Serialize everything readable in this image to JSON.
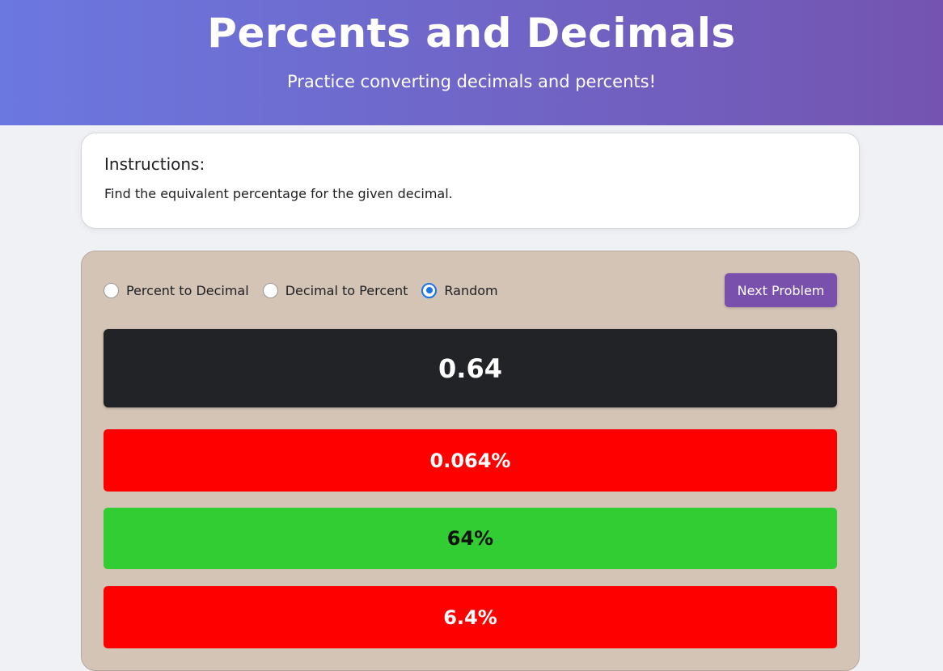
{
  "header": {
    "title": "Percents and Decimals",
    "subtitle": "Practice converting decimals and percents!"
  },
  "instructions": {
    "heading": "Instructions:",
    "text": "Find the equivalent percentage for the given decimal."
  },
  "controls": {
    "modes": [
      {
        "label": "Percent to Decimal",
        "selected": false
      },
      {
        "label": "Decimal to Percent",
        "selected": false
      },
      {
        "label": "Random",
        "selected": true
      }
    ],
    "next_label": "Next Problem"
  },
  "problem": {
    "value": "0.64"
  },
  "answers": [
    {
      "label": "0.064%",
      "state": "wrong",
      "color": "#ff0000"
    },
    {
      "label": "64%",
      "state": "correct",
      "color": "#32cd32"
    },
    {
      "label": "6.4%",
      "state": "wrong",
      "color": "#ff0000"
    }
  ],
  "colors": {
    "header_start": "#6b78e0",
    "header_end": "#7454b0",
    "panel": "#d4c4b6",
    "button": "#7a50ad",
    "radio_accent": "#1a73e8"
  }
}
